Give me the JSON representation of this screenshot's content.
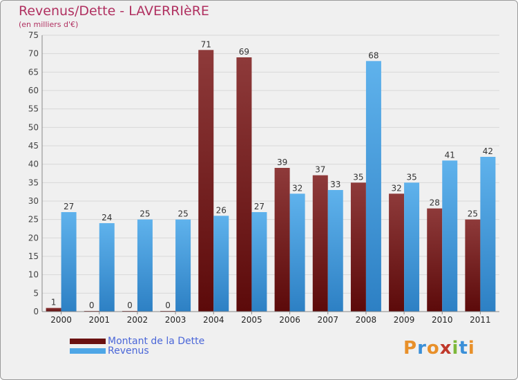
{
  "chart_data": {
    "type": "bar",
    "title": "Revenus/Dette - LAVERRIèRE",
    "subtitle": "(en milliers d'€)",
    "categories": [
      "2000",
      "2001",
      "2002",
      "2003",
      "2004",
      "2005",
      "2006",
      "2007",
      "2008",
      "2009",
      "2010",
      "2011"
    ],
    "series": [
      {
        "name": "Montant de la Dette",
        "color": "#7a1c1c",
        "values": [
          1,
          0,
          0,
          0,
          71,
          69,
          39,
          37,
          35,
          32,
          28,
          25
        ]
      },
      {
        "name": "Revenus",
        "color": "#4ea6e6",
        "values": [
          27,
          24,
          25,
          25,
          26,
          27,
          32,
          33,
          68,
          35,
          41,
          42
        ]
      }
    ],
    "yticks": [
      0,
      5,
      10,
      15,
      20,
      25,
      30,
      35,
      40,
      45,
      50,
      55,
      60,
      65,
      70,
      75
    ],
    "ylim": [
      0,
      75
    ],
    "grid": true,
    "legend_placement": "bottom-left"
  },
  "logo": {
    "text": "Proxiti"
  }
}
